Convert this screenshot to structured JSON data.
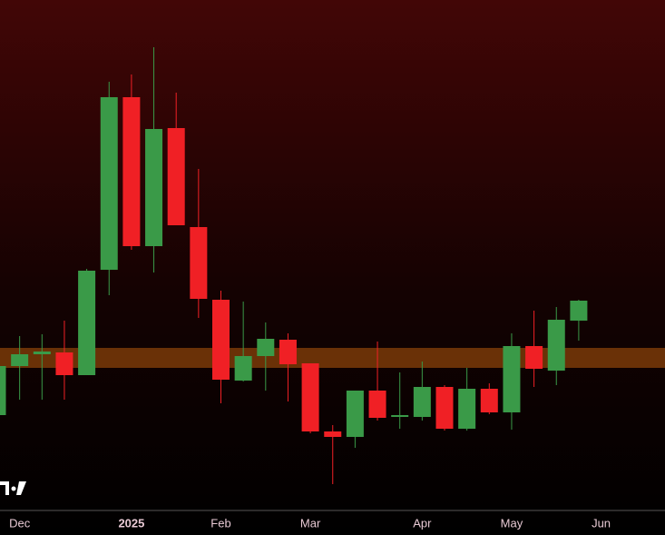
{
  "chart_data": {
    "type": "candlestick",
    "categories": [
      null,
      "Dec",
      null,
      null,
      null,
      null,
      "2025",
      null,
      null,
      null,
      "Feb",
      null,
      null,
      null,
      "Mar",
      null,
      null,
      null,
      null,
      "Apr",
      null,
      null,
      null,
      "May",
      null,
      null,
      null,
      "Jun"
    ],
    "open": [
      103,
      157,
      170,
      172,
      147,
      263,
      453,
      289,
      419,
      310,
      230,
      141,
      168,
      186,
      160,
      85,
      79,
      130,
      101,
      101,
      134,
      88,
      132,
      106,
      179,
      152,
      207,
      null
    ],
    "high": [
      175,
      190,
      192,
      207,
      264,
      470,
      478,
      508,
      458,
      374,
      240,
      228,
      205,
      193,
      160,
      92,
      130,
      184,
      150,
      162,
      136,
      155,
      138,
      193,
      218,
      222,
      230,
      null
    ],
    "low": [
      90,
      120,
      120,
      120,
      147,
      235,
      285,
      260,
      312,
      210,
      116,
      140,
      130,
      118,
      83,
      27,
      67,
      97,
      88,
      97,
      86,
      86,
      104,
      87,
      134,
      136,
      185,
      null
    ],
    "close": [
      157,
      170,
      173,
      147,
      262,
      453,
      289,
      418,
      312,
      231,
      142,
      168,
      187,
      159,
      85,
      79,
      130,
      100,
      103,
      134,
      88,
      132,
      106,
      179,
      154,
      208,
      229,
      null
    ],
    "up_color": "#3a9a48",
    "down_color": "#f02025",
    "zone": [
      155,
      177
    ],
    "zone_color": "#7a3a08",
    "ylim": [
      0,
      560
    ]
  }
}
